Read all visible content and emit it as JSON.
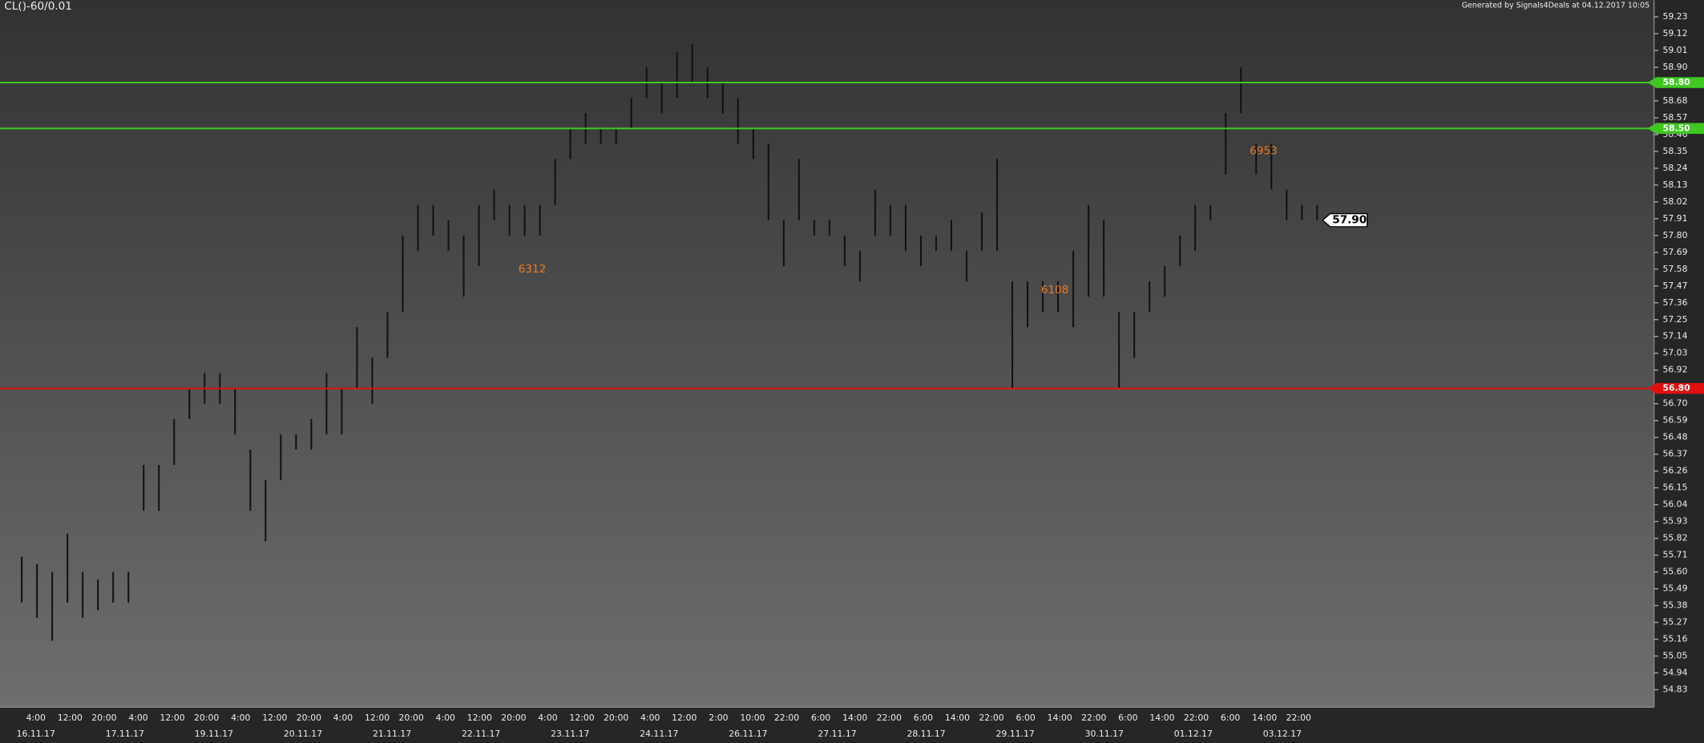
{
  "chart_data": {
    "type": "range-bar",
    "title": "CL()-60/0.01",
    "subtitle": "Generated by Signals4Deals at 04.12.2017 10:05",
    "bar_color": "#111111",
    "high": [
      55.7,
      55.65,
      55.6,
      55.85,
      55.6,
      55.55,
      55.6,
      55.6,
      56.3,
      56.3,
      56.6,
      56.8,
      56.9,
      56.9,
      56.8,
      56.4,
      56.2,
      56.5,
      56.5,
      56.6,
      56.9,
      56.8,
      57.2,
      57.0,
      57.3,
      57.8,
      58.0,
      58.0,
      57.9,
      57.8,
      58.0,
      58.1,
      58.0,
      58.0,
      58.0,
      58.3,
      58.5,
      58.6,
      58.5,
      58.5,
      58.7,
      58.9,
      58.8,
      59.0,
      59.05,
      58.9,
      58.8,
      58.7,
      58.5,
      58.4,
      57.9,
      58.3,
      57.9,
      57.9,
      57.8,
      57.7,
      58.1,
      58.0,
      58.0,
      57.8,
      57.8,
      57.9,
      57.7,
      57.95,
      58.3,
      57.5,
      57.5,
      57.5,
      57.5,
      57.7,
      58.0,
      57.9,
      57.3,
      57.3,
      57.5,
      57.6,
      57.8,
      58.0,
      58.0,
      58.6,
      58.9,
      58.4,
      58.4,
      58.1,
      58.0,
      58.0
    ],
    "low": [
      55.4,
      55.3,
      55.15,
      55.4,
      55.3,
      55.35,
      55.4,
      55.4,
      56.0,
      56.0,
      56.3,
      56.6,
      56.7,
      56.7,
      56.5,
      56.0,
      55.8,
      56.2,
      56.4,
      56.4,
      56.5,
      56.5,
      56.8,
      56.7,
      57.0,
      57.3,
      57.7,
      57.8,
      57.7,
      57.4,
      57.6,
      57.9,
      57.8,
      57.8,
      57.8,
      58.0,
      58.3,
      58.4,
      58.4,
      58.4,
      58.5,
      58.7,
      58.6,
      58.7,
      58.8,
      58.7,
      58.6,
      58.4,
      58.3,
      57.9,
      57.6,
      57.9,
      57.8,
      57.8,
      57.6,
      57.5,
      57.8,
      57.8,
      57.7,
      57.6,
      57.7,
      57.7,
      57.5,
      57.7,
      57.7,
      56.8,
      57.2,
      57.3,
      57.3,
      57.2,
      57.4,
      57.4,
      56.8,
      57.0,
      57.3,
      57.4,
      57.6,
      57.7,
      57.9,
      58.2,
      58.6,
      58.2,
      58.1,
      57.9,
      57.9,
      57.9
    ],
    "ylim": [
      54.73,
      59.34
    ],
    "yticks": [
      59.23,
      59.12,
      59.01,
      {
        "value": 58.9,
        "label": "58.90"
      },
      58.68,
      58.57,
      58.46,
      58.35,
      58.24,
      58.13,
      58.02,
      57.91,
      {
        "value": 57.8,
        "label": "57.80"
      },
      57.69,
      57.58,
      57.47,
      57.36,
      57.25,
      57.14,
      57.03,
      56.92,
      {
        "value": 56.7,
        "label": "56.70"
      },
      56.59,
      56.48,
      56.37,
      56.26,
      56.15,
      56.04,
      55.93,
      55.82,
      55.71,
      {
        "value": 55.6,
        "label": "55.60"
      },
      55.49,
      55.38,
      55.27,
      55.16,
      55.05,
      54.94,
      54.83
    ],
    "levels": [
      {
        "value": 58.8,
        "label": "58.80",
        "color": "#3ec820"
      },
      {
        "value": 58.5,
        "label": "58.50",
        "color": "#3ec820"
      },
      {
        "value": 56.8,
        "label": "56.80",
        "color": "#e01010"
      }
    ],
    "last_price": {
      "value": 57.9,
      "label": "57.90"
    },
    "annotations": [
      "6312",
      "6108",
      "6953"
    ],
    "time_labels": [
      "4:00",
      "12:00",
      "20:00",
      "4:00",
      "12:00",
      "20:00",
      "4:00",
      "12:00",
      "20:00",
      "4:00",
      "12:00",
      "20:00",
      "4:00",
      "12:00",
      "20:00",
      "4:00",
      "12:00",
      "20:00",
      "4:00",
      "12:00",
      "2:00",
      "10:00",
      "22:00",
      "6:00",
      "14:00",
      "22:00",
      "6:00",
      "14:00",
      "22:00",
      "6:00",
      "14:00",
      "22:00",
      "6:00",
      "14:00",
      "22:00",
      "6:00",
      "14:00",
      "22:00"
    ],
    "date_labels": [
      "16.11.17",
      "17.11.17",
      "19.11.17",
      "20.11.17",
      "21.11.17",
      "22.11.17",
      "23.11.17",
      "24.11.17",
      "26.11.17",
      "27.11.17",
      "28.11.17",
      "29.11.17",
      "30.11.17",
      "01.12.17",
      "03.12.17"
    ]
  }
}
